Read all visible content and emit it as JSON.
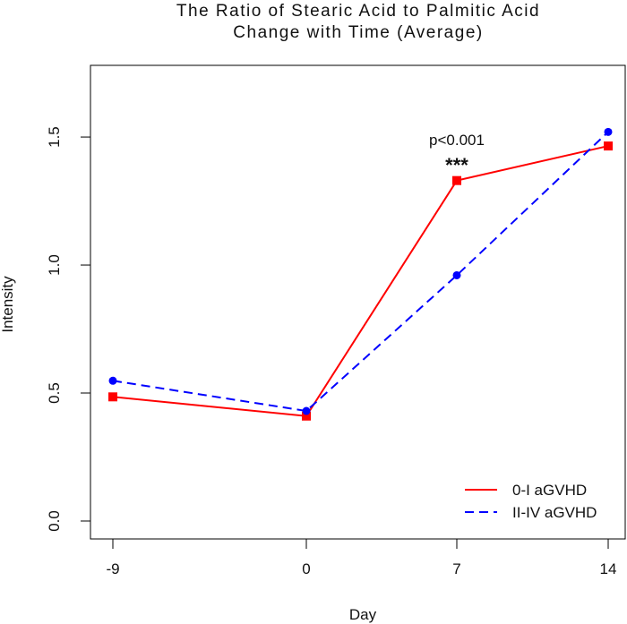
{
  "chart_data": {
    "type": "line",
    "title_lines": [
      "The Ratio of Stearic Acid to Palmitic Acid",
      "Change with Time (Average)"
    ],
    "xlabel": "Day",
    "ylabel": "Intensity",
    "x": [
      -9,
      0,
      7,
      14
    ],
    "x_tick_labels": [
      "-9",
      "0",
      "7",
      "14"
    ],
    "y_ticks": [
      0.0,
      0.5,
      1.0,
      1.5
    ],
    "y_tick_labels": [
      "0.0",
      "0.5",
      "1.0",
      "1.5"
    ],
    "ylim": [
      -0.07,
      1.78
    ],
    "series": [
      {
        "name": "0-I aGVHD",
        "values": [
          0.485,
          0.41,
          1.33,
          1.465
        ],
        "color": "#ff0000",
        "line": "solid",
        "marker": "square"
      },
      {
        "name": "II-IV aGVHD",
        "values": [
          0.548,
          0.43,
          0.96,
          1.52
        ],
        "color": "#0000ff",
        "line": "dashed",
        "marker": "circle"
      }
    ],
    "annotations": [
      {
        "text": "p<0.001",
        "x": 7
      },
      {
        "text": "***",
        "x": 7
      }
    ],
    "legend_position": "bottom-right",
    "grid": false
  }
}
